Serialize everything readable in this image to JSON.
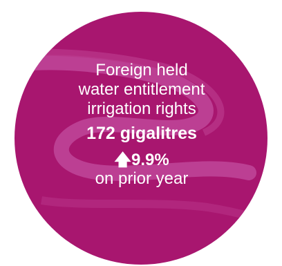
{
  "colors": {
    "circle": "#a8166f",
    "swirl": "#c0479a",
    "text": "#ffffff"
  },
  "heading": {
    "line1": "Foreign held",
    "line2": "water entitlement",
    "line3": "irrigation rights"
  },
  "value": "172 gigalitres",
  "change": {
    "arrow_icon": "arrow-up-icon",
    "arrow_glyph": "🡅",
    "value": "9.9%",
    "label": "on prior year"
  }
}
